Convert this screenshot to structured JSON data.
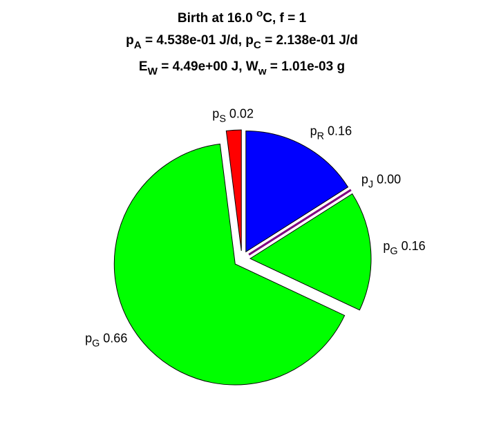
{
  "chart_data": {
    "type": "pie",
    "title": [
      "Birth at 16.0 ^oC, f = 1",
      "p_A = 4.538e-01 J/d, p_C = 2.138e-01 J/d",
      "E_W = 4.49e+00 J, W_w = 1.01e-03 g"
    ],
    "categories": [
      "p_S",
      "p_R",
      "p_J",
      "p_G",
      "p_G"
    ],
    "values": [
      0.02,
      0.16,
      0.0,
      0.16,
      0.66
    ],
    "value_labels": [
      "0.02",
      "0.16",
      "0.00",
      "0.16",
      "0.66"
    ],
    "colors": [
      "#ff0000",
      "#0000ff",
      "#800080",
      "#00ff00",
      "#00ff00"
    ]
  }
}
